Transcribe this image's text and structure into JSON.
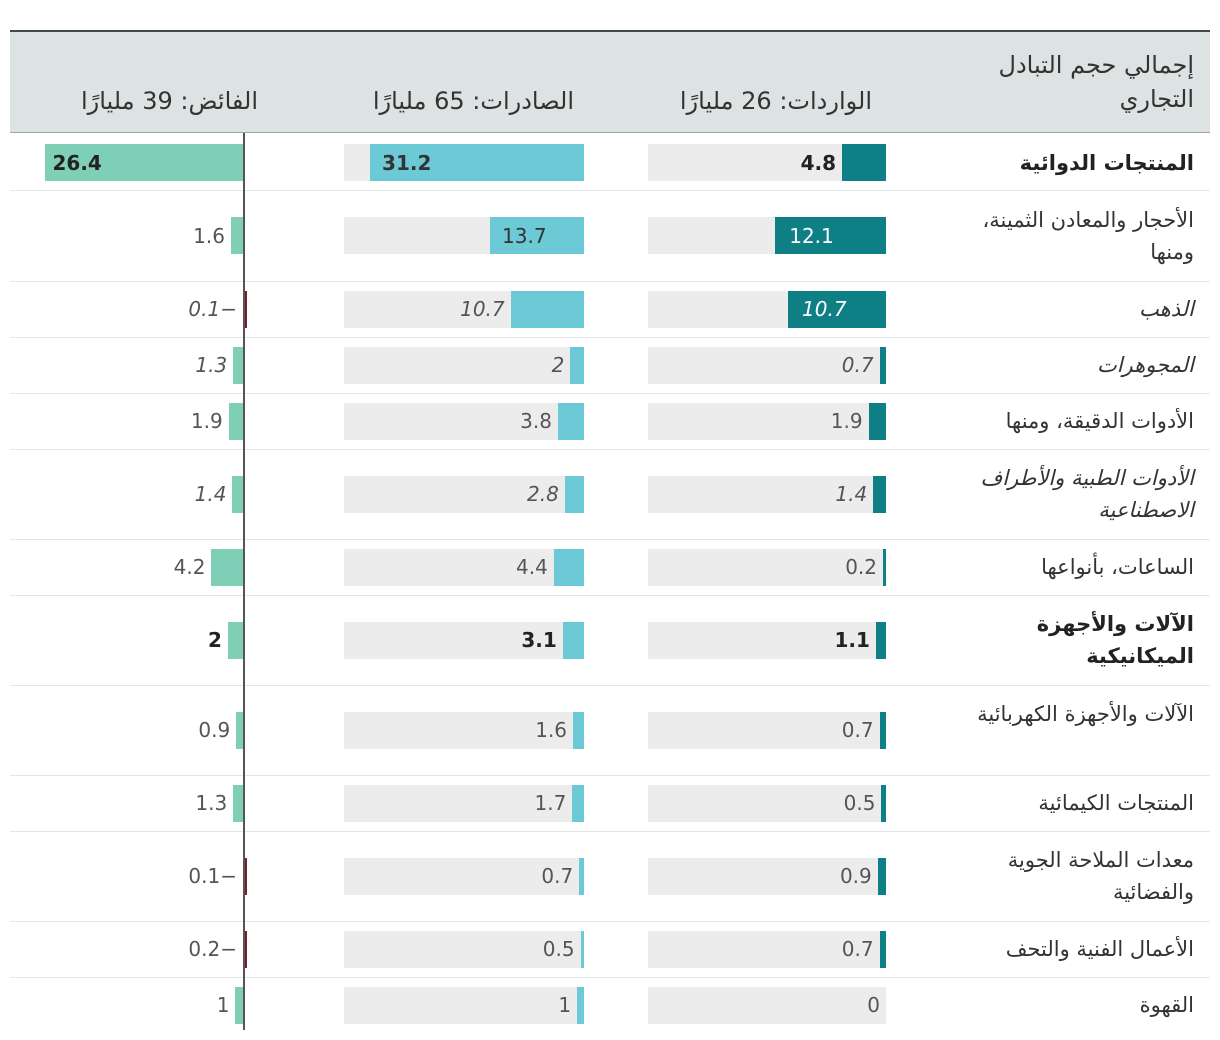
{
  "header": {
    "title": "إجمالي حجم التبادل التجاري",
    "imports": "الواردات: 26 مليارًا",
    "exports": "الصادرات: 65 مليارًا",
    "surplus": "الفائض: 39 مليارًا"
  },
  "colors": {
    "imports": "#0f7f86",
    "exports": "#6ccad6",
    "surplus_positive": "#7fcfb7",
    "surplus_negative": "#7a1f2b",
    "track": "#ececec",
    "header_bg": "#dde3e3"
  },
  "chart_data": {
    "type": "bar",
    "orientation": "horizontal",
    "categories": [
      "المنتجات الدوائية",
      "الأحجار والمعادن الثمينة، ومنها",
      "الذهب",
      "المجوهرات",
      "الأدوات الدقيقة، ومنها",
      "الأدوات الطبية والأطراف الاصطناعية",
      "الساعات، بأنواعها",
      "الآلات والأجهزة الميكانيكية",
      "الآلات والأجهزة الكهربائية",
      "المنتجات الكيمائية",
      "معدات الملاحة الجوية والفضائية",
      "الأعمال الفنية والتحف",
      "القهوة"
    ],
    "series": [
      {
        "name": "الواردات: 26 مليارًا",
        "values": [
          4.8,
          12.1,
          10.7,
          0.7,
          1.9,
          1.4,
          0.2,
          1.1,
          0.7,
          0.5,
          0.9,
          0.7,
          0
        ]
      },
      {
        "name": "الصادرات: 65 مليارًا",
        "values": [
          31.2,
          13.7,
          10.7,
          2,
          3.8,
          2.8,
          4.4,
          3.1,
          1.6,
          1.7,
          0.7,
          0.5,
          1
        ]
      },
      {
        "name": "الفائض: 39 مليارًا",
        "values": [
          26.4,
          1.6,
          -0.1,
          1.3,
          1.9,
          1.4,
          4.2,
          2,
          0.9,
          1.3,
          -0.1,
          -0.2,
          1
        ]
      }
    ],
    "value_labels": {
      "imports": [
        "4.8",
        "12.1",
        "10.7",
        "0.7",
        "1.9",
        "1.4",
        "0.2",
        "1.1",
        "0.7",
        "0.5",
        "0.9",
        "0.7",
        "0"
      ],
      "exports": [
        "31.2",
        "13.7",
        "10.7",
        "2",
        "3.8",
        "2.8",
        "4.4",
        "3.1",
        "1.6",
        "1.7",
        "0.7",
        "0.5",
        "1"
      ],
      "surplus": [
        "26.4",
        "1.6",
        "0.1−",
        "1.3",
        "1.9",
        "1.4",
        "4.2",
        "2",
        "0.9",
        "1.3",
        "0.1−",
        "0.2−",
        "1"
      ]
    },
    "emphasis": [
      "bold",
      "normal",
      "italic",
      "italic",
      "normal",
      "italic",
      "normal",
      "bold",
      "normal",
      "normal",
      "normal",
      "normal",
      "normal"
    ],
    "xlim_imports": [
      0,
      26
    ],
    "xlim_exports": [
      0,
      35
    ],
    "xlim_surplus": [
      -1,
      27
    ],
    "grid": false,
    "legend": "column headers"
  }
}
